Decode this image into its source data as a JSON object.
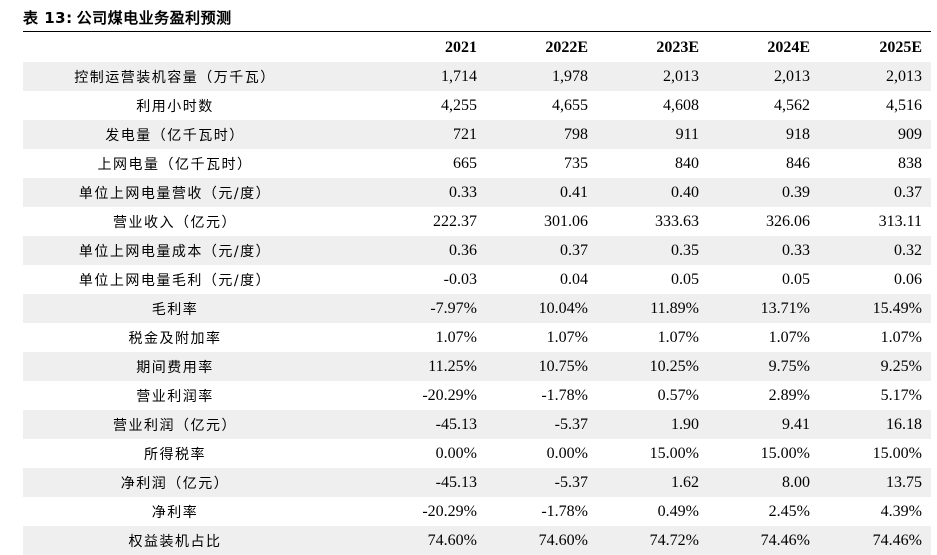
{
  "title": {
    "label": "表 13:",
    "text": "公司煤电业务盈利预测"
  },
  "table": {
    "columns": [
      "",
      "2021",
      "2022E",
      "2023E",
      "2024E",
      "2025E"
    ],
    "rows": [
      {
        "metric": "控制运营装机容量（万千瓦）",
        "values": [
          "1,714",
          "1,978",
          "2,013",
          "2,013",
          "2,013"
        ]
      },
      {
        "metric": "利用小时数",
        "values": [
          "4,255",
          "4,655",
          "4,608",
          "4,562",
          "4,516"
        ]
      },
      {
        "metric": "发电量（亿千瓦时）",
        "values": [
          "721",
          "798",
          "911",
          "918",
          "909"
        ]
      },
      {
        "metric": "上网电量（亿千瓦时）",
        "values": [
          "665",
          "735",
          "840",
          "846",
          "838"
        ]
      },
      {
        "metric": "单位上网电量营收（元/度）",
        "values": [
          "0.33",
          "0.41",
          "0.40",
          "0.39",
          "0.37"
        ]
      },
      {
        "metric": "营业收入（亿元）",
        "values": [
          "222.37",
          "301.06",
          "333.63",
          "326.06",
          "313.11"
        ]
      },
      {
        "metric": "单位上网电量成本（元/度）",
        "values": [
          "0.36",
          "0.37",
          "0.35",
          "0.33",
          "0.32"
        ]
      },
      {
        "metric": "单位上网电量毛利（元/度）",
        "values": [
          "-0.03",
          "0.04",
          "0.05",
          "0.05",
          "0.06"
        ]
      },
      {
        "metric": "毛利率",
        "values": [
          "-7.97%",
          "10.04%",
          "11.89%",
          "13.71%",
          "15.49%"
        ]
      },
      {
        "metric": "税金及附加率",
        "values": [
          "1.07%",
          "1.07%",
          "1.07%",
          "1.07%",
          "1.07%"
        ]
      },
      {
        "metric": "期间费用率",
        "values": [
          "11.25%",
          "10.75%",
          "10.25%",
          "9.75%",
          "9.25%"
        ]
      },
      {
        "metric": "营业利润率",
        "values": [
          "-20.29%",
          "-1.78%",
          "0.57%",
          "2.89%",
          "5.17%"
        ]
      },
      {
        "metric": "营业利润（亿元）",
        "values": [
          "-45.13",
          "-5.37",
          "1.90",
          "9.41",
          "16.18"
        ]
      },
      {
        "metric": "所得税率",
        "values": [
          "0.00%",
          "0.00%",
          "15.00%",
          "15.00%",
          "15.00%"
        ]
      },
      {
        "metric": "净利润（亿元）",
        "values": [
          "-45.13",
          "-5.37",
          "1.62",
          "8.00",
          "13.75"
        ]
      },
      {
        "metric": "净利率",
        "values": [
          "-20.29%",
          "-1.78%",
          "0.49%",
          "2.45%",
          "4.39%"
        ]
      },
      {
        "metric": "权益装机占比",
        "values": [
          "74.60%",
          "74.60%",
          "74.72%",
          "74.46%",
          "74.46%"
        ]
      }
    ]
  },
  "colors": {
    "row_shade": "#efefef",
    "text": "#000000",
    "background": "#ffffff"
  }
}
